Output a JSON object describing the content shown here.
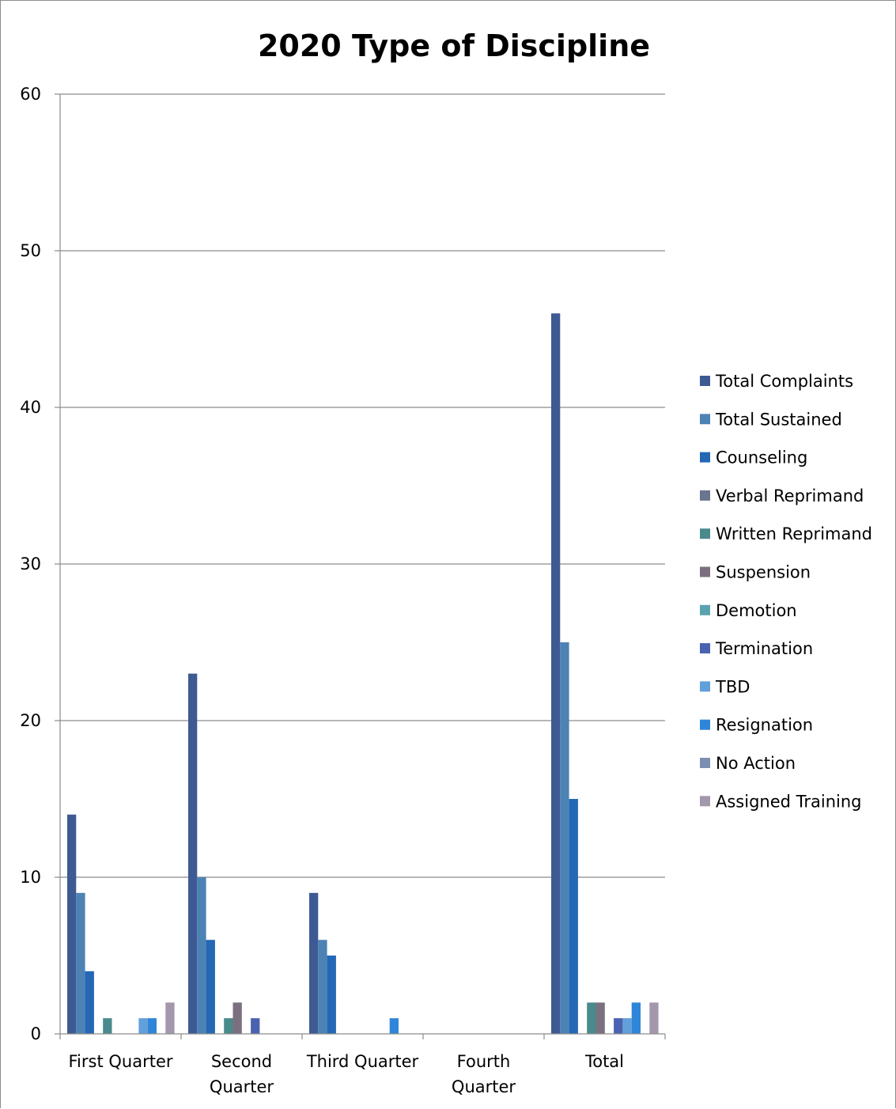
{
  "chart_data": {
    "type": "bar",
    "title": "2020 Type of Discipline",
    "xlabel": "",
    "ylabel": "",
    "ylim": [
      0,
      60
    ],
    "yticks": [
      0,
      10,
      20,
      30,
      40,
      50,
      60
    ],
    "grid": true,
    "legend_position": "right",
    "categories": [
      [
        "First Quarter"
      ],
      [
        "Second",
        "Quarter"
      ],
      [
        "Third Quarter"
      ],
      [
        "Fourth",
        "Quarter"
      ],
      [
        "Total"
      ]
    ],
    "series": [
      {
        "name": "Total Complaints",
        "color": "#3e5a93",
        "values": [
          14,
          23,
          9,
          0,
          46
        ]
      },
      {
        "name": "Total Sustained",
        "color": "#4d82b5",
        "values": [
          9,
          10,
          6,
          0,
          25
        ]
      },
      {
        "name": "Counseling",
        "color": "#2468b5",
        "values": [
          4,
          6,
          5,
          0,
          15
        ]
      },
      {
        "name": "Verbal Reprimand",
        "color": "#6a7590",
        "values": [
          0,
          0,
          0,
          0,
          0
        ]
      },
      {
        "name": "Written Reprimand",
        "color": "#4a8a8c",
        "values": [
          1,
          1,
          0,
          0,
          2
        ]
      },
      {
        "name": "Suspension",
        "color": "#7b7080",
        "values": [
          0,
          2,
          0,
          0,
          2
        ]
      },
      {
        "name": "Demotion",
        "color": "#5aa3ae",
        "values": [
          0,
          0,
          0,
          0,
          0
        ]
      },
      {
        "name": "Termination",
        "color": "#4a62b0",
        "values": [
          0,
          1,
          0,
          0,
          1
        ]
      },
      {
        "name": "TBD",
        "color": "#61a0da",
        "values": [
          1,
          0,
          0,
          0,
          1
        ]
      },
      {
        "name": "Resignation",
        "color": "#2f86d8",
        "values": [
          1,
          0,
          1,
          0,
          2
        ]
      },
      {
        "name": "No Action",
        "color": "#7d8fb0",
        "values": [
          0,
          0,
          0,
          0,
          0
        ]
      },
      {
        "name": "Assigned Training",
        "color": "#a397ab",
        "values": [
          2,
          0,
          0,
          0,
          2
        ]
      }
    ]
  }
}
